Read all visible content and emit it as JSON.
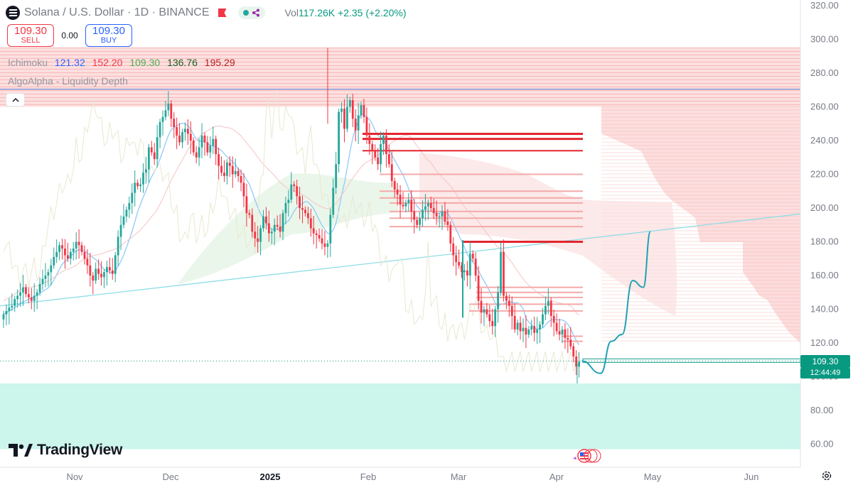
{
  "header": {
    "symbol_title": "Solana / U.S. Dollar · 1D · BINANCE",
    "volume_label": "Vol",
    "volume_value": "117.26K",
    "change": "+2.35 (+2.20%)"
  },
  "trade": {
    "sell_price": "109.30",
    "sell_label": "SELL",
    "spread": "0.00",
    "buy_price": "109.30",
    "buy_label": "BUY"
  },
  "indicators": {
    "ichimoku_name": "Ichimoku",
    "ichimoku_values": [
      {
        "value": "121.32",
        "color": "#2962ff"
      },
      {
        "value": "152.20",
        "color": "#f23645"
      },
      {
        "value": "109.30",
        "color": "#4caf50"
      },
      {
        "value": "136.76",
        "color": "#1b5e20"
      },
      {
        "value": "195.29",
        "color": "#b71c1c"
      }
    ],
    "liquidity_name": "AlgoAlpha - Liquidity Depth"
  },
  "price_tag": {
    "price": "109.30",
    "countdown": "12:44:49"
  },
  "brand": {
    "name": "TradingView"
  },
  "icons": [
    "solana-coin-icon",
    "flag-icon",
    "eye-icon",
    "share-nodes-icon",
    "chevron-up-icon",
    "tradingview-logo-icon",
    "gear-icon",
    "us-flag-icon"
  ],
  "colors": {
    "up": "#26a69a",
    "down": "#f23645",
    "liquidity_red": "#f7b5b5",
    "liquidity_green": "#ccf5ec",
    "level_red": "#e3262e",
    "projection": "#1fa2b3"
  },
  "chart_data": {
    "type": "candlestick",
    "title": "Solana / U.S. Dollar · 1D · BINANCE",
    "y_axis": {
      "ticks": [
        "320.00",
        "300.00",
        "280.00",
        "260.00",
        "240.00",
        "220.00",
        "200.00",
        "180.00",
        "160.00",
        "140.00",
        "120.00",
        "100.00",
        "80.00",
        "60.00"
      ],
      "range": [
        57,
        322
      ],
      "position": "right"
    },
    "x_axis": {
      "ticks": [
        "Nov",
        "Dec",
        "2025",
        "Feb",
        "Mar",
        "Apr",
        "May",
        "Jun"
      ],
      "range": [
        "2024-10-08",
        "2025-06-24"
      ]
    },
    "grid": false,
    "last_price": 109.3,
    "candles_close": [
      137,
      139,
      141,
      142,
      146,
      148,
      150,
      153,
      149,
      147,
      145,
      148,
      150,
      155,
      158,
      160,
      162,
      166,
      171,
      174,
      178,
      176,
      172,
      170,
      174,
      176,
      180,
      178,
      174,
      170,
      166,
      160,
      157,
      164,
      161,
      159,
      162,
      165,
      163,
      161,
      172,
      183,
      190,
      195,
      199,
      203,
      209,
      215,
      213,
      214,
      221,
      223,
      236,
      233,
      229,
      242,
      251,
      254,
      258,
      262,
      253,
      248,
      243,
      239,
      245,
      247,
      244,
      240,
      233,
      230,
      236,
      243,
      239,
      233,
      237,
      241,
      232,
      225,
      221,
      219,
      227,
      225,
      220,
      222,
      219,
      215,
      207,
      197,
      196,
      186,
      182,
      180,
      188,
      195,
      191,
      185,
      186,
      190,
      189,
      186,
      197,
      203,
      205,
      214,
      213,
      207,
      200,
      199,
      197,
      194,
      188,
      185,
      184,
      182,
      179,
      177,
      179,
      196,
      212,
      226,
      257,
      259,
      247,
      260,
      264,
      253,
      246,
      255,
      261,
      254,
      243,
      238,
      234,
      230,
      226,
      238,
      243,
      232,
      226,
      216,
      211,
      208,
      202,
      201,
      203,
      205,
      198,
      193,
      190,
      194,
      199,
      201,
      203,
      200,
      197,
      195,
      195,
      198,
      192,
      190,
      179,
      172,
      168,
      166,
      162,
      163,
      160,
      173,
      170,
      160,
      145,
      138,
      140,
      137,
      133,
      130,
      140,
      150,
      174,
      148,
      145,
      142,
      136,
      128,
      132,
      127,
      129,
      125,
      128,
      130,
      126,
      128,
      131,
      137,
      142,
      145,
      136,
      132,
      127,
      125,
      128,
      123,
      122,
      118,
      112,
      106,
      109
    ],
    "series": [
      {
        "name": "Ichimoku",
        "values": [
          "121.32",
          "152.20",
          "109.30",
          "136.76",
          "195.29"
        ]
      }
    ],
    "liquidity_levels_red": [
      244,
      241,
      234,
      220,
      210,
      206,
      203,
      198,
      194,
      189,
      180,
      153,
      150,
      147,
      143,
      139,
      124,
      121
    ],
    "liquidity_zone_red": [
      260,
      295
    ],
    "liquidity_zone_green": [
      57,
      96
    ],
    "horizontal_line_blue": 270.5,
    "trend_line": [
      [
        0,
        142
      ],
      [
        1126,
        196.5
      ]
    ],
    "projection_path": [
      [
        109.3,
        0
      ],
      [
        102,
        6
      ],
      [
        121,
        16
      ],
      [
        125,
        26
      ],
      [
        157,
        32
      ],
      [
        153,
        40
      ],
      [
        186,
        50
      ]
    ],
    "annotations": []
  }
}
